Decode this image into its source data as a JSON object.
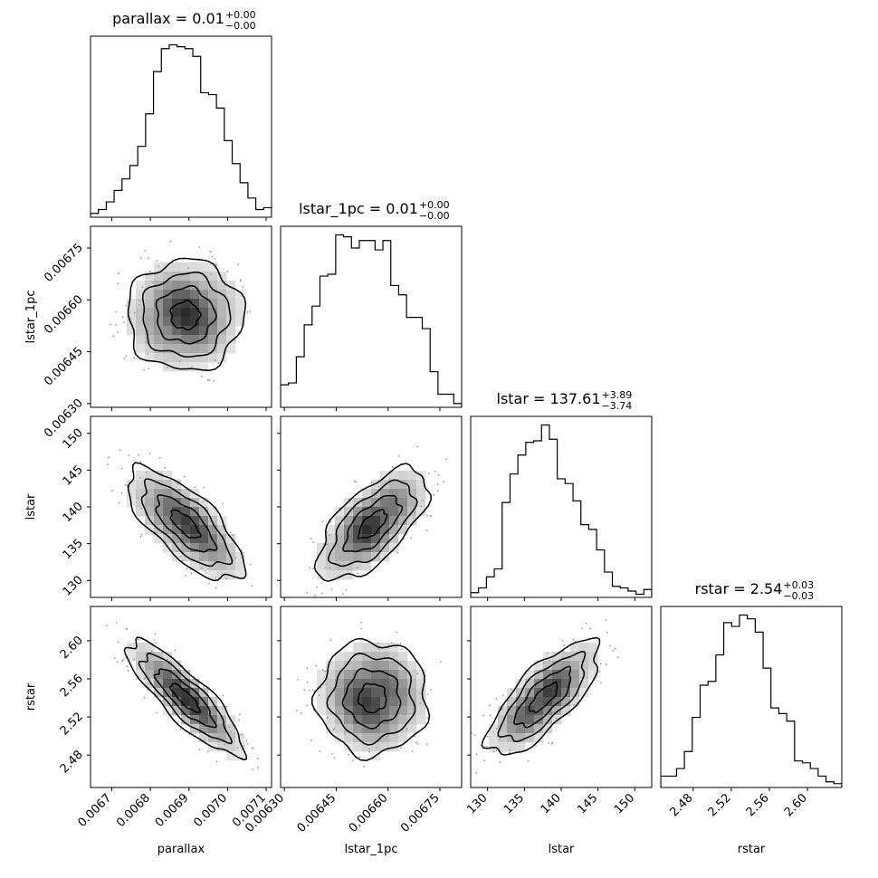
{
  "chart_data": {
    "type": "corner",
    "parameters": [
      "parallax",
      "lstar_1pc",
      "lstar",
      "rstar"
    ],
    "titles": [
      {
        "label": "parallax = 0.01",
        "sup": "+0.00",
        "sub": "−0.00"
      },
      {
        "label": "lstar_1pc = 0.01",
        "sup": "+0.00",
        "sub": "−0.00"
      },
      {
        "label": "lstar = 137.61",
        "sup": "+3.89",
        "sub": "−3.74"
      },
      {
        "label": "rstar = 2.54",
        "sup": "+0.03",
        "sub": "−0.03"
      }
    ],
    "axis_labels": [
      "parallax",
      "lstar_1pc",
      "lstar",
      "rstar"
    ],
    "ranges": [
      [
        0.006645,
        0.007114
      ],
      [
        0.006289,
        0.006813
      ],
      [
        127.7,
        152.3
      ],
      [
        2.446,
        2.636
      ]
    ],
    "ticks": [
      {
        "values": [
          0.0067,
          0.0068,
          0.0069,
          0.007,
          0.0071
        ],
        "labels": [
          "0.0067",
          "0.0068",
          "0.0069",
          "0.0070",
          "0.0071"
        ]
      },
      {
        "values": [
          0.0063,
          0.00645,
          0.0066,
          0.00675
        ],
        "labels": [
          "0.00630",
          "0.00645",
          "0.00660",
          "0.00675"
        ]
      },
      {
        "values": [
          130,
          135,
          140,
          145,
          150
        ],
        "labels": [
          "130",
          "135",
          "140",
          "145",
          "150"
        ]
      },
      {
        "values": [
          2.48,
          2.52,
          2.56,
          2.6
        ],
        "labels": [
          "2.48",
          "2.52",
          "2.56",
          "2.60"
        ]
      }
    ],
    "medians": [
      0.00689,
      0.006555,
      137.61,
      2.54
    ],
    "sigmas": [
      7.5e-05,
      8e-05,
      3.8,
      0.03
    ],
    "histograms": [
      [
        2,
        4,
        8,
        14,
        20,
        27,
        37,
        54,
        76,
        88,
        90,
        89,
        88,
        84,
        65,
        64,
        57,
        40,
        28,
        18,
        10,
        4,
        5
      ],
      [
        12,
        13,
        27,
        44,
        54,
        70,
        71,
        92,
        91,
        85,
        89,
        89,
        84,
        89,
        65,
        60,
        48,
        48,
        42,
        19,
        7,
        7,
        2
      ],
      [
        3,
        6,
        13,
        18,
        60,
        78,
        90,
        98,
        99,
        109,
        100,
        75,
        72,
        61,
        46,
        43,
        30,
        16,
        7,
        6,
        4,
        2,
        5
      ],
      [
        6,
        6,
        10,
        19,
        37,
        54,
        56,
        70,
        87,
        85,
        91,
        89,
        82,
        63,
        42,
        39,
        35,
        14,
        13,
        10,
        6,
        3,
        2
      ]
    ],
    "correlations": {
      "1-0": 0.0,
      "2-0": -0.72,
      "2-1": 0.65,
      "3-0": -0.85,
      "3-1": 0.0,
      "3-2": 0.75
    },
    "contour_levels_sigma": [
      0.5,
      1.0,
      1.5,
      2.0
    ],
    "color": "#000000"
  }
}
